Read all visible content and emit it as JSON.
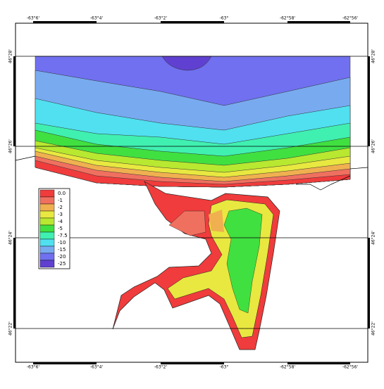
{
  "longitude_labels": [
    "-63°6'",
    "-63°4'",
    "-63°2'",
    "-63°",
    "-62°58'",
    "-62°56'"
  ],
  "latitude_labels": [
    "46°28'",
    "46°26'",
    "46°24'",
    "46°22'"
  ],
  "legend": [
    {
      "label": "0.0",
      "color": "#f03c3c"
    },
    {
      "label": "-1",
      "color": "#f07060"
    },
    {
      "label": "-2",
      "color": "#f0b050"
    },
    {
      "label": "-3",
      "color": "#e8e840"
    },
    {
      "label": "-4",
      "color": "#b8e830"
    },
    {
      "label": "-5",
      "color": "#40e040"
    },
    {
      "label": "-7.5",
      "color": "#40f0b0"
    },
    {
      "label": "-10",
      "color": "#50e0f0"
    },
    {
      "label": "-15",
      "color": "#78aaf0"
    },
    {
      "label": "-20",
      "color": "#7070f0"
    },
    {
      "label": "-25",
      "color": "#6040d0"
    }
  ]
}
